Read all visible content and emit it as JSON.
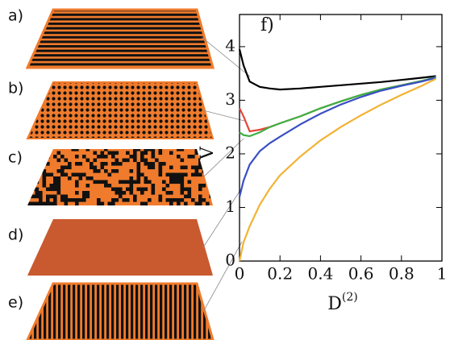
{
  "panels": [
    "a)",
    "b)",
    "c)",
    "d)",
    "e)"
  ],
  "chart_data": {
    "type": "line",
    "annotation": "f)",
    "ylabel": "V",
    "xlabel": "D",
    "xlabel_superscript": "(2)",
    "x": [
      0,
      0.02,
      0.05,
      0.1,
      0.15,
      0.2,
      0.3,
      0.4,
      0.5,
      0.6,
      0.7,
      0.8,
      0.9,
      0.97
    ],
    "series": [
      {
        "color": "#000000",
        "values": [
          3.95,
          3.65,
          3.35,
          3.25,
          3.22,
          3.2,
          3.22,
          3.25,
          3.28,
          3.31,
          3.34,
          3.38,
          3.42,
          3.45
        ]
      },
      {
        "color": "#e8443a",
        "values": [
          2.85,
          2.7,
          2.42,
          2.45,
          2.5,
          2.57,
          2.7,
          2.85,
          2.98,
          3.1,
          3.2,
          3.28,
          3.36,
          3.42
        ]
      },
      {
        "color": "#3cb043",
        "values": [
          2.4,
          2.35,
          2.33,
          2.4,
          2.5,
          2.57,
          2.7,
          2.85,
          2.98,
          3.1,
          3.2,
          3.28,
          3.36,
          3.43
        ]
      },
      {
        "color": "#3a4fc4",
        "values": [
          1.2,
          1.5,
          1.8,
          2.05,
          2.2,
          2.32,
          2.55,
          2.75,
          2.92,
          3.06,
          3.18,
          3.27,
          3.35,
          3.42
        ]
      },
      {
        "color": "#f2b233",
        "values": [
          0,
          0.35,
          0.65,
          1.05,
          1.35,
          1.6,
          1.95,
          2.25,
          2.5,
          2.72,
          2.92,
          3.1,
          3.27,
          3.4
        ]
      }
    ],
    "xlim": [
      0,
      1
    ],
    "ylim": [
      0,
      4.6
    ],
    "xticks": [
      0,
      0.2,
      0.4,
      0.6,
      0.8,
      1
    ],
    "yticks": [
      0,
      1,
      2,
      3,
      4
    ]
  }
}
